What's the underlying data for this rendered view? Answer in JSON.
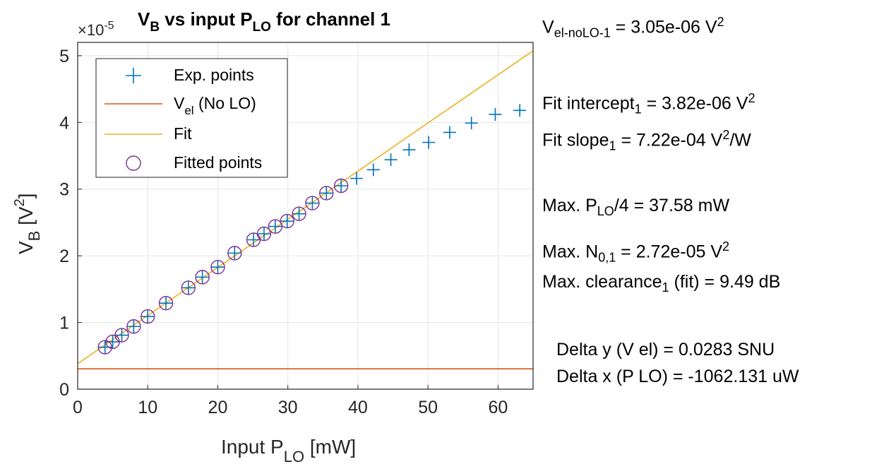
{
  "chart_data": {
    "type": "scatter",
    "title": {
      "prefix": "V",
      "prefix_sub": "B",
      "middle": " vs input P",
      "middle_sub": "LO",
      "suffix": " for channel 1"
    },
    "exponent_label": {
      "base": "×10",
      "power": "-5"
    },
    "xlabel": {
      "main": "Input P",
      "sub": "LO",
      "rest": " [mW]"
    },
    "ylabel": {
      "main": "V",
      "sub": "B",
      "rest1": " [V",
      "sup": "2",
      "rest2": "]"
    },
    "xlim": [
      0,
      65
    ],
    "ylim": [
      0,
      5.2
    ],
    "xticks": [
      0,
      10,
      20,
      30,
      40,
      50,
      60
    ],
    "yticks": [
      0,
      1,
      2,
      3,
      4,
      5
    ],
    "grid": true,
    "legend_position": "top-left",
    "legend": [
      {
        "marker": "plus",
        "label": "Exp. points"
      },
      {
        "marker": "line-red",
        "label_main": "V",
        "label_sub": "el",
        "label_rest": " (No LO)"
      },
      {
        "marker": "line-yellow",
        "label": "Fit"
      },
      {
        "marker": "circle",
        "label": "Fitted points"
      }
    ],
    "colors": {
      "exp": "#0072BD",
      "vel": "#D95319",
      "fit": "#EDB120",
      "fitted": "#7E2F8E",
      "grid": "#e5e5e5"
    },
    "series": [
      {
        "name": "Exp. points",
        "x": [
          3.9,
          5.0,
          6.3,
          8.0,
          10.0,
          12.6,
          15.8,
          17.8,
          20.0,
          22.4,
          25.1,
          26.6,
          28.2,
          29.9,
          31.6,
          33.5,
          35.5,
          37.6,
          39.8,
          42.2,
          44.7,
          47.3,
          50.1,
          53.1,
          56.2,
          59.6,
          63.1
        ],
        "y": [
          0.63,
          0.71,
          0.81,
          0.94,
          1.09,
          1.29,
          1.52,
          1.68,
          1.83,
          2.04,
          2.24,
          2.33,
          2.44,
          2.52,
          2.63,
          2.79,
          2.94,
          3.05,
          3.16,
          3.29,
          3.44,
          3.59,
          3.7,
          3.85,
          3.99,
          4.12,
          4.18
        ]
      },
      {
        "name": "Fitted points",
        "x": [
          3.9,
          5.0,
          6.3,
          8.0,
          10.0,
          12.6,
          15.8,
          17.8,
          20.0,
          22.4,
          25.1,
          26.6,
          28.2,
          29.9,
          31.6,
          33.5,
          35.5,
          37.6
        ],
        "y": [
          0.63,
          0.71,
          0.81,
          0.94,
          1.09,
          1.29,
          1.52,
          1.68,
          1.83,
          2.04,
          2.24,
          2.33,
          2.44,
          2.52,
          2.63,
          2.79,
          2.94,
          3.05
        ]
      },
      {
        "name": "Fit",
        "type": "line",
        "x": [
          0,
          65
        ],
        "y": [
          0.382,
          5.075
        ]
      },
      {
        "name": "V_el (No LO)",
        "type": "line",
        "x": [
          0,
          65
        ],
        "y": [
          0.305,
          0.305
        ]
      }
    ]
  },
  "info": {
    "vel": {
      "a": "V",
      "sub": "el-noLO-1",
      "b": " = 3.05e-06 V",
      "sup": "2"
    },
    "intercept": {
      "a": "Fit intercept",
      "sub": "1",
      "b": " = 3.82e-06 V",
      "sup": "2"
    },
    "slope": {
      "a": "Fit slope",
      "sub": "1",
      "b": " = 7.22e-04 V",
      "sup": "2",
      "c": "/W"
    },
    "maxplo": {
      "a": "Max. P",
      "sub": "LO",
      "b": "/4 = 37.58 mW"
    },
    "maxn0": {
      "a": "Max. N",
      "sub": "0,1",
      "b": " = 2.72e-05 V",
      "sup": "2"
    },
    "clearance": {
      "a": "Max. clearance",
      "sub": "1",
      "b": " (fit) = 9.49 dB"
    },
    "delta_y": "Delta y (V el) = 0.0283 SNU",
    "delta_x": "Delta x (P LO) = -1062.131 uW"
  }
}
